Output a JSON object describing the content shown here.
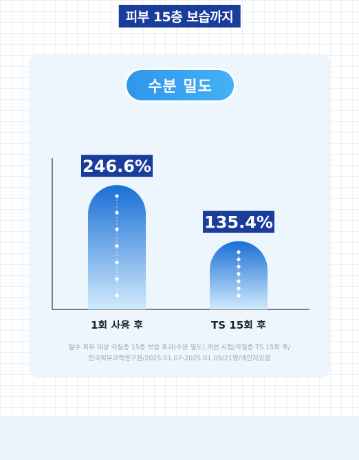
{
  "page_title": "피부 15층 보습까지",
  "card": {
    "badge": "수분 밀도",
    "footnote_line1": "탈수 피부 대상 각질층 15층 보습 효과(수분 밀도) 개선 시험/각질층 TS 15회 후/",
    "footnote_line2": "한국피부과학연구원/2025.01.07-2025.01.09/21명/개인차있음"
  },
  "chart_data": {
    "type": "bar",
    "title": "수분 밀도",
    "xlabel": "",
    "ylabel": "",
    "categories": [
      "1회 사용 후",
      "TS 15회 후"
    ],
    "values": [
      246.6,
      135.4
    ],
    "value_labels": [
      "246.6%",
      "135.4%"
    ],
    "ylim": [
      0,
      300
    ],
    "grid": false,
    "bar_color_top": "#1a6fd6",
    "bar_color_bottom": "#cfeafc",
    "label_bg": "#1a3d9c"
  }
}
